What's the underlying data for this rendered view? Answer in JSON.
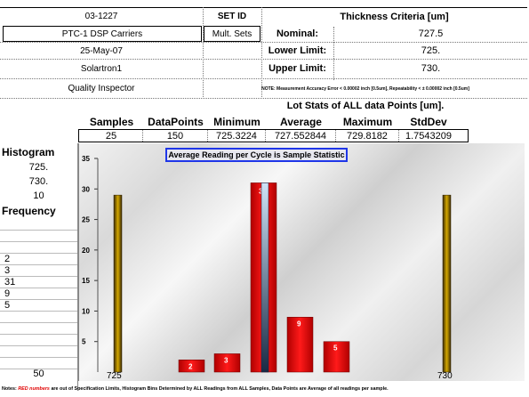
{
  "header": {
    "id": "03-1227",
    "set_id_label": "SET ID",
    "criteria_title": "Thickness Criteria [um]",
    "carrier": "PTC-1  DSP Carriers",
    "set_value": "Mult. Sets",
    "nominal_label": "Nominal:",
    "nominal_value": "727.5",
    "date": "25-May-07",
    "lower_label": "Lower Limit:",
    "lower_value": "725.",
    "instrument": "Solartron1",
    "upper_label": "Upper Limit:",
    "upper_value": "730.",
    "inspector": "Quality Inspector",
    "note": "NOTE: Measurement Accuracy Error < 0.00002 inch [0.5um], Repeatability < ± 0.00002 inch [0.5um]"
  },
  "stats": {
    "title": "Lot Stats of ALL data Points [um].",
    "headers": [
      "Samples",
      "DataPoints",
      "Minimum",
      "Average",
      "Maximum",
      "StdDev"
    ],
    "values": [
      "25",
      "150",
      "725.3224",
      "727.552844",
      "729.8182",
      "1.7543209"
    ]
  },
  "left_panel": {
    "histogram_label": "Histogram",
    "hist_values": [
      "725.",
      "730.",
      "10"
    ],
    "frequency_label": "Frequency",
    "frequencies": [
      "",
      "",
      "",
      "2",
      "3",
      "31",
      "9",
      "5",
      "",
      "",
      "",
      "",
      ""
    ],
    "total": "50"
  },
  "chart_data": {
    "type": "bar",
    "title": "Average Reading per Cycle is Sample Statistic",
    "ylim": [
      0,
      35
    ],
    "yticks": [
      5,
      10,
      15,
      20,
      25,
      30,
      35
    ],
    "categories": [
      "bin1",
      "bin2",
      "bin3",
      "bin4",
      "bin5",
      "bin6"
    ],
    "values": [
      2,
      3,
      31,
      9,
      5,
      0
    ],
    "bar_labels": [
      "2",
      "3",
      "31",
      "9",
      "5",
      ""
    ],
    "nominal_marker_value": 31,
    "limit_lines": [
      {
        "label": "725",
        "value": 29,
        "position": "left"
      },
      {
        "label": "730",
        "value": 29,
        "position": "right"
      }
    ],
    "colors": {
      "bar": "#e00000",
      "nominal": "#6fa8dc",
      "limit": "#a67c00",
      "title_border": "#1f36e8"
    }
  },
  "footer": {
    "prefix": "Notes:",
    "red_text": "RED numbers",
    "rest": "are out of Specification Limits, Histogram Bins Determined by ALL Readings from ALL Samples, Data Points are Average of all readings per sample."
  }
}
